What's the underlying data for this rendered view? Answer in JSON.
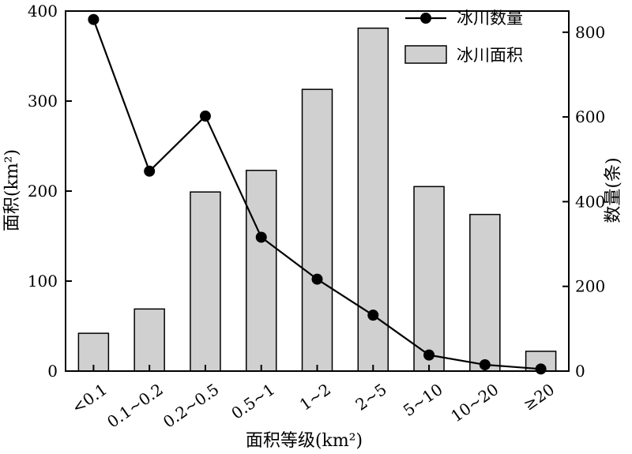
{
  "chart_data": {
    "type": "bar+line",
    "categories": [
      "<0.1",
      "0.1~0.2",
      "0.2~0.5",
      "0.5~1",
      "1~2",
      "2~5",
      "5~10",
      "10~20",
      "≥20"
    ],
    "series": [
      {
        "name": "冰川面积",
        "type": "bar",
        "axis": "left",
        "values": [
          42,
          69,
          199,
          223,
          313,
          381,
          205,
          174,
          22
        ]
      },
      {
        "name": "冰川数量",
        "type": "line",
        "axis": "right",
        "values": [
          830,
          472,
          602,
          316,
          217,
          132,
          38,
          15,
          5
        ]
      }
    ],
    "xlabel": "面积等级(km²)",
    "ylabel_left": "面积(km²)",
    "ylabel_right": "数量(条)",
    "ylim_left": [
      0,
      400
    ],
    "ylim_right": [
      0,
      850
    ],
    "yticks_left": [
      0,
      100,
      200,
      300,
      400
    ],
    "yticks_right": [
      0,
      200,
      400,
      600,
      800
    ],
    "grid": false,
    "legend_position": "top-right",
    "colors": {
      "bar_fill": "#d0d0d0",
      "bar_stroke": "#000000",
      "line": "#000000",
      "marker": "#000000"
    }
  }
}
